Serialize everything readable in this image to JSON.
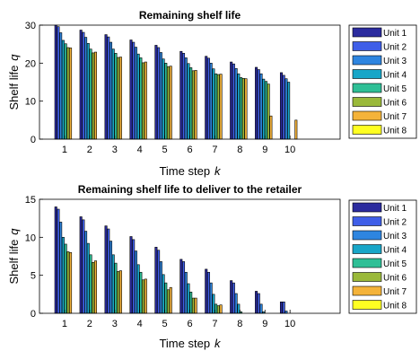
{
  "chart_data": [
    {
      "type": "bar",
      "title": "Remaining shelf life",
      "xlabel": "Time step",
      "xlabel_symbol": "k",
      "ylabel": "Shelf life",
      "ylabel_symbol": "q",
      "categories": [
        "1",
        "2",
        "3",
        "4",
        "5",
        "6",
        "7",
        "8",
        "9",
        "10"
      ],
      "x_slots": 12,
      "ylim": [
        0,
        30
      ],
      "yticks": [
        0,
        10,
        20,
        30
      ],
      "grid": false,
      "legend_position": "right",
      "series": [
        {
          "name": "Unit 1",
          "color": "#2b2b9e",
          "values": [
            30,
            28.7,
            27.5,
            26.1,
            24.7,
            23.1,
            21.8,
            20.3,
            18.9,
            17.5
          ]
        },
        {
          "name": "Unit 2",
          "color": "#3f5ee8",
          "values": [
            29.6,
            28.1,
            26.9,
            25.5,
            24.1,
            22.6,
            21.3,
            19.8,
            18.3,
            16.8
          ]
        },
        {
          "name": "Unit 3",
          "color": "#2e85e0",
          "values": [
            28,
            26.8,
            25.5,
            24.2,
            22.8,
            21.4,
            20,
            18.6,
            17.2,
            15.9
          ]
        },
        {
          "name": "Unit 4",
          "color": "#18a6c8",
          "values": [
            26,
            25.2,
            23.7,
            22.4,
            21.1,
            19.9,
            18.5,
            17.2,
            15.8,
            15
          ]
        },
        {
          "name": "Unit 5",
          "color": "#2fbf96",
          "values": [
            25.1,
            23.7,
            22.6,
            21.4,
            20,
            18.8,
            17.2,
            16.2,
            15.2,
            0
          ]
        },
        {
          "name": "Unit 6",
          "color": "#9ab93a",
          "values": [
            24.1,
            22.7,
            21.5,
            20.1,
            19.1,
            18,
            17,
            16,
            14.5,
            0
          ]
        },
        {
          "name": "Unit 7",
          "color": "#f4b33a",
          "values": [
            24,
            22.9,
            21.6,
            20.3,
            19.2,
            18.1,
            17.1,
            15.9,
            6.1,
            5
          ]
        },
        {
          "name": "Unit 8",
          "color": "#ffff22",
          "values": [
            0,
            0,
            0,
            0,
            0,
            0,
            0,
            0,
            0,
            0
          ]
        }
      ]
    },
    {
      "type": "bar",
      "title": "Remaining shelf life to deliver to the retailer",
      "xlabel": "Time step",
      "xlabel_symbol": "k",
      "ylabel": "Shelf life",
      "ylabel_symbol": "q",
      "categories": [
        "1",
        "2",
        "3",
        "4",
        "5",
        "6",
        "7",
        "8",
        "9",
        "10"
      ],
      "x_slots": 12,
      "ylim": [
        0,
        15
      ],
      "yticks": [
        0,
        5,
        10,
        15
      ],
      "grid": false,
      "legend_position": "right",
      "series": [
        {
          "name": "Unit 1",
          "color": "#2b2b9e",
          "values": [
            14,
            12.7,
            11.5,
            10.1,
            8.7,
            7.1,
            5.8,
            4.3,
            2.9,
            1.5
          ]
        },
        {
          "name": "Unit 2",
          "color": "#3f5ee8",
          "values": [
            13.7,
            12.3,
            11.1,
            9.7,
            8.3,
            6.8,
            5.4,
            4,
            2.6,
            1.5
          ]
        },
        {
          "name": "Unit 3",
          "color": "#2e85e0",
          "values": [
            12,
            10.8,
            9.5,
            8.2,
            6.8,
            5.4,
            4,
            2.6,
            1.2,
            0.3
          ]
        },
        {
          "name": "Unit 4",
          "color": "#18a6c8",
          "values": [
            10,
            9.2,
            7.7,
            6.4,
            5.1,
            3.9,
            2.5,
            1.2,
            0.2,
            0
          ]
        },
        {
          "name": "Unit 5",
          "color": "#2fbf96",
          "values": [
            9.1,
            7.7,
            6.6,
            5.4,
            4,
            2.8,
            1.2,
            0.2,
            0,
            0
          ]
        },
        {
          "name": "Unit 6",
          "color": "#9ab93a",
          "values": [
            8.1,
            6.7,
            5.5,
            4.4,
            3.1,
            2,
            1,
            0,
            0,
            0
          ]
        },
        {
          "name": "Unit 7",
          "color": "#f4b33a",
          "values": [
            8,
            6.9,
            5.6,
            4.5,
            3.4,
            2,
            1.1,
            0,
            0,
            0
          ]
        },
        {
          "name": "Unit 8",
          "color": "#ffff22",
          "values": [
            0,
            0,
            0,
            0,
            0,
            0,
            0,
            0,
            0,
            0
          ]
        }
      ]
    }
  ]
}
